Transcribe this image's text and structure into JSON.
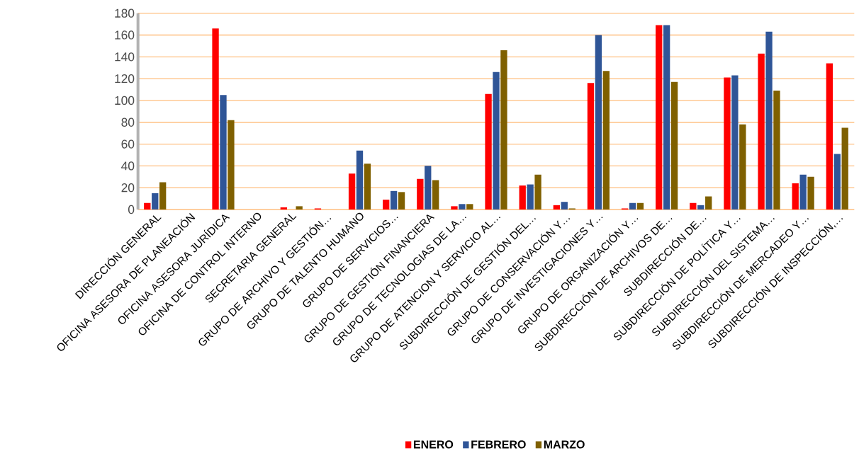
{
  "chart_data": {
    "type": "bar",
    "categories": [
      "DIRECCIÓN GENERAL",
      "OFICINA ASESORA DE PLANEACIÓN",
      "OFICINA ASESORA JURÍDICA",
      "OFICINA DE CONTROL INTERNO",
      "SECRETARIA GENERAL",
      "GRUPO DE ARCHIVO Y GESTIÓN…",
      "GRUPO DE TALENTO HUMANO",
      "GRUPO DE SERVICIOS…",
      "GRUPO DE GESTIÓN FINANCIERA",
      "GRUPO DE TECNOLOGIAS DE LA…",
      "GRUPO DE ATENCION Y SERVICIO AL…",
      "SUBDIRECCIÓN DE GESTIÓN DEL…",
      "GRUPO DE CONSERVACIÓN Y…",
      "GRUPO DE INVESTIGACIONES Y…",
      "GRUPO DE ORGANIZACIÓN Y…",
      "SUBDIRECCIÓN DE ARCHIVOS DE…",
      "SUBDIRECCIÓN DE…",
      "SUBDIRECCIÓN DE POLÍTICA Y…",
      "SUBDIRECCIÓN DEL SISTEMA…",
      "SUBDIRECCIÓN DE MERCADEO Y…",
      "SUBDIRECCIÓN DE INSPECCIÓN,…"
    ],
    "series": [
      {
        "name": "ENERO",
        "color": "#ff0000",
        "values": [
          6,
          0,
          166,
          0,
          2,
          1,
          33,
          9,
          28,
          3,
          106,
          22,
          4,
          116,
          1,
          169,
          6,
          121,
          143,
          24,
          134
        ]
      },
      {
        "name": "FEBRERO",
        "color": "#2f5597",
        "values": [
          15,
          0,
          105,
          0,
          0,
          0,
          54,
          17,
          40,
          5,
          126,
          23,
          7,
          160,
          6,
          169,
          4,
          123,
          163,
          32,
          51
        ]
      },
      {
        "name": "MARZO",
        "color": "#7f6000",
        "values": [
          25,
          0,
          82,
          0,
          3,
          0,
          42,
          16,
          27,
          5,
          146,
          32,
          1,
          127,
          6,
          117,
          12,
          78,
          109,
          30,
          75
        ]
      }
    ],
    "ylim": [
      0,
      180
    ],
    "yticks": [
      0,
      20,
      40,
      60,
      80,
      100,
      120,
      140,
      160,
      180
    ],
    "grid": "y",
    "legend": "bottom"
  }
}
